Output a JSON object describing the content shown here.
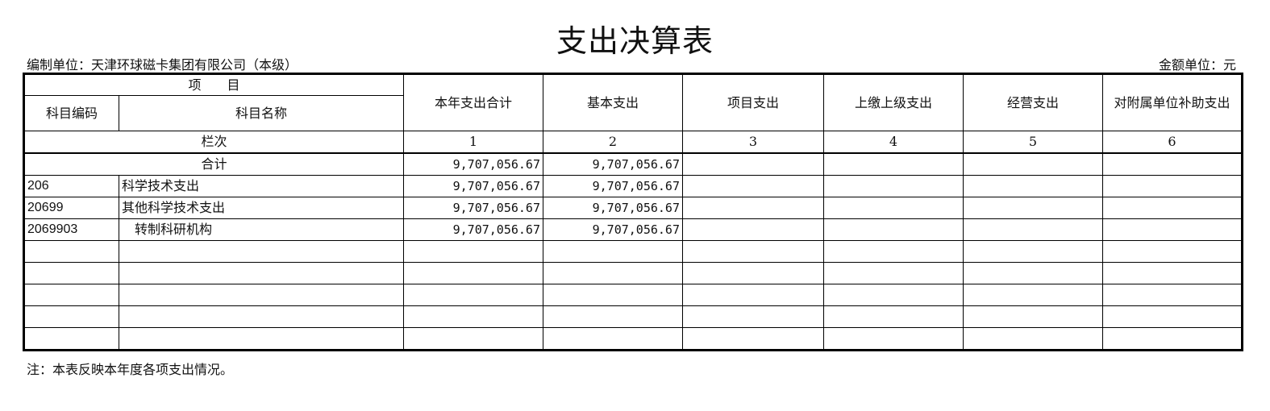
{
  "title": "支出决算表",
  "unit_label": "编制单位：天津环球磁卡集团有限公司（本级）",
  "money_unit": "金额单位：元",
  "header": {
    "project": "项　　目",
    "code": "科目编码",
    "name": "科目名称",
    "columns": [
      "本年支出合计",
      "基本支出",
      "项目支出",
      "上缴上级支出",
      "经营支出",
      "对附属单位补助支出"
    ]
  },
  "column_row": {
    "label": "栏次",
    "numbers": [
      "1",
      "2",
      "3",
      "4",
      "5",
      "6"
    ]
  },
  "total_row": {
    "label": "合计",
    "values": [
      "9,707,056.67",
      "9,707,056.67",
      "",
      "",
      "",
      ""
    ]
  },
  "rows": [
    {
      "code": "206",
      "name": "科学技术支出",
      "values": [
        "9,707,056.67",
        "9,707,056.67",
        "",
        "",
        "",
        ""
      ]
    },
    {
      "code": "20699",
      "name": "其他科学技术支出",
      "values": [
        "9,707,056.67",
        "9,707,056.67",
        "",
        "",
        "",
        ""
      ]
    },
    {
      "code": "2069903",
      "name": "　转制科研机构",
      "values": [
        "9,707,056.67",
        "9,707,056.67",
        "",
        "",
        "",
        ""
      ]
    }
  ],
  "note": "注：本表反映本年度各项支出情况。"
}
